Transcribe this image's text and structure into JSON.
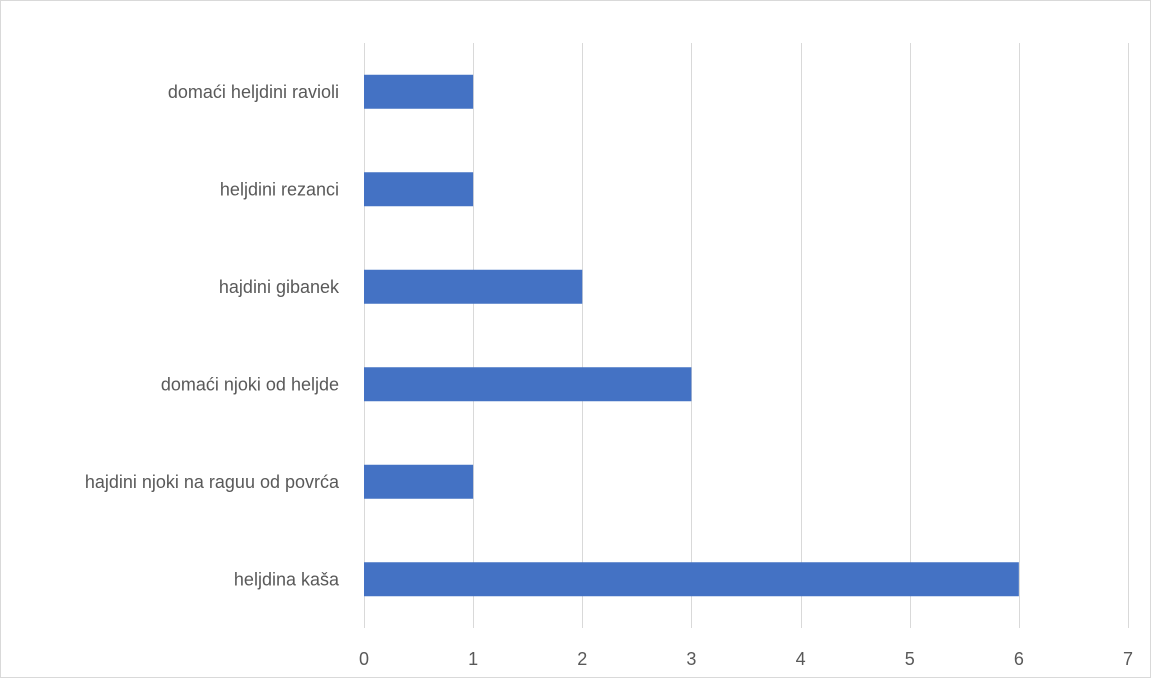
{
  "chart_data": {
    "type": "bar",
    "orientation": "horizontal",
    "title": "",
    "xlabel": "",
    "ylabel": "",
    "categories": [
      "domaći heljdini ravioli",
      "heljdini rezanci",
      "hajdini gibanek",
      "domaći njoki od heljde",
      "hajdini njoki na raguu od povrća",
      "heljdina kaša"
    ],
    "values": [
      1,
      1,
      2,
      3,
      1,
      6
    ],
    "xlim": [
      0,
      7
    ],
    "x_ticks": [
      "0",
      "1",
      "2",
      "3",
      "4",
      "5",
      "6",
      "7"
    ],
    "grid": "vertical",
    "legend": "none",
    "bar_color": "#4472c4",
    "grid_color": "#d9d9d9",
    "text_color": "#595959"
  }
}
